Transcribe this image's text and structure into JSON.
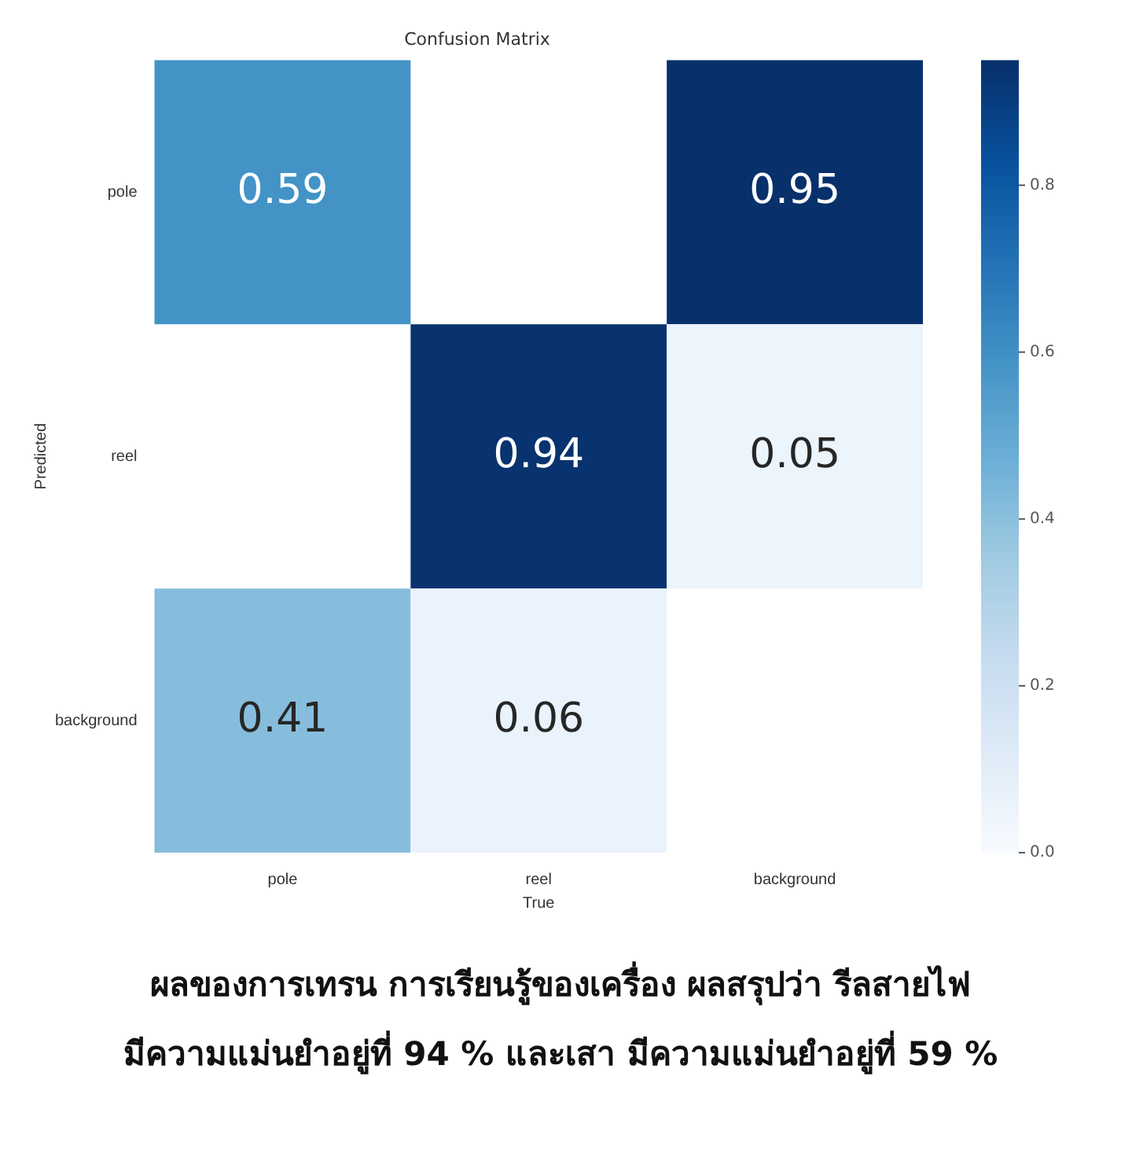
{
  "chart_data": {
    "type": "heatmap",
    "title": "Confusion Matrix",
    "xlabel": "True",
    "ylabel": "Predicted",
    "categories": [
      "pole",
      "reel",
      "background"
    ],
    "y_categories": [
      "pole",
      "reel",
      "background"
    ],
    "cells": [
      [
        0.59,
        null,
        0.95
      ],
      [
        null,
        0.94,
        0.05
      ],
      [
        0.41,
        0.06,
        null
      ]
    ],
    "data_labels": true,
    "clim": [
      0,
      0.95
    ],
    "cticks": [
      {
        "value": 0,
        "label": "0.0"
      },
      0.2,
      0.4,
      0.6,
      0.8
    ],
    "annotations": [
      "ผลของการเทรน การเรียนรู้ของเครื่อง ผลสรุปว่า รีลสายไฟ",
      "มีความแม่นยำอยู่ที่ 94 % และเสา มีความแม่นยำอยู่ที่ 59 %"
    ]
  }
}
